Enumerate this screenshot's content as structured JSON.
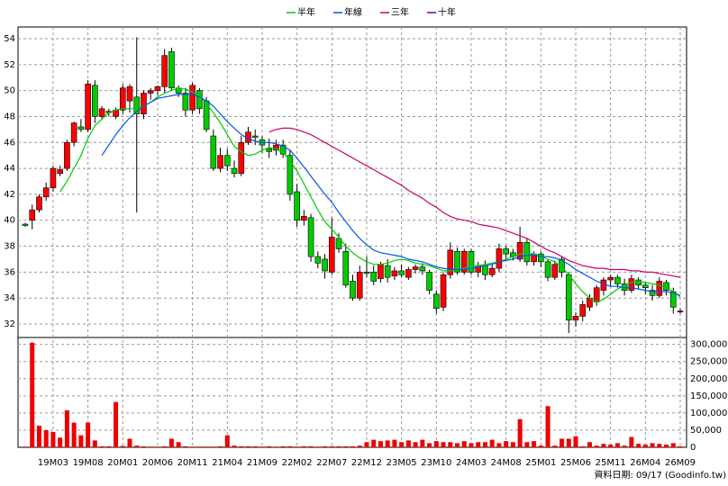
{
  "chart_data": {
    "type": "candlestick",
    "categories": [
      null,
      null,
      null,
      null,
      "19M03",
      null,
      null,
      null,
      null,
      "19M08",
      null,
      null,
      null,
      null,
      "20M01",
      null,
      null,
      null,
      null,
      "20M06",
      null,
      null,
      null,
      null,
      "20M11",
      null,
      null,
      null,
      null,
      "21M04",
      null,
      null,
      null,
      null,
      "21M09",
      null,
      null,
      null,
      null,
      "22M02",
      null,
      null,
      null,
      null,
      "22M07",
      null,
      null,
      null,
      null,
      "22M12",
      null,
      null,
      null,
      null,
      "23M05",
      null,
      null,
      null,
      null,
      "23M10",
      null,
      null,
      null,
      null,
      "24M03",
      null,
      null,
      null,
      null,
      "24M08",
      null,
      null,
      null,
      null,
      "25M01",
      null,
      null,
      null,
      null,
      "25M06",
      null,
      null,
      null,
      null,
      "25M11",
      null,
      null,
      null,
      null,
      "26M04",
      null,
      null,
      null,
      null,
      "26M09"
    ],
    "open": [
      39.7,
      40,
      40.8,
      41.8,
      42.5,
      43.6,
      44,
      46,
      47.2,
      47,
      50.4,
      48,
      48.3,
      48,
      48.5,
      49.2,
      49.5,
      48.2,
      49.8,
      50,
      50.3,
      53,
      50.2,
      49.8,
      48.5,
      50,
      49.2,
      46.5,
      44,
      45,
      44,
      43.6,
      46,
      46.5,
      46.2,
      45.5,
      45.4,
      45.8,
      45,
      42.2,
      40,
      40.2,
      37.2,
      37,
      36,
      38.6,
      37.6,
      35.3,
      34,
      36,
      36,
      35.5,
      36.5,
      35.7,
      36.1,
      35.6,
      36.2,
      36.4,
      36,
      34.3,
      33.3,
      35.8,
      37.6,
      36,
      37.6,
      36,
      36.5,
      35.8,
      36.3,
      37.8,
      37.5,
      37,
      38.3,
      36.8,
      37.4,
      36.8,
      35.6,
      37,
      35.8,
      32.3,
      32.6,
      33.3,
      33.7,
      34.6,
      35.4,
      35.6,
      35.1,
      34.6,
      35.4,
      35,
      34.6,
      34.2,
      35.2,
      34.5,
      33
    ],
    "high": [
      39.8,
      41.2,
      42,
      42.9,
      44.2,
      44.2,
      46.2,
      47.6,
      47.8,
      50.8,
      50.8,
      48.8,
      48.6,
      48.7,
      50.5,
      50.5,
      54.1,
      50,
      50.2,
      50.4,
      53.2,
      53.3,
      50.4,
      50.2,
      50.6,
      50.2,
      49.5,
      47,
      45.6,
      45.5,
      44.6,
      46.5,
      47.2,
      47,
      46.5,
      46.3,
      46.2,
      46.2,
      45.4,
      42.8,
      40.8,
      40.5,
      37.6,
      37.4,
      40.2,
      39,
      38.2,
      35.8,
      36.5,
      37.2,
      36.5,
      36.8,
      37,
      36.4,
      36.6,
      36.4,
      36.6,
      36.7,
      36.2,
      34.6,
      36,
      38.3,
      37.9,
      37.8,
      37.8,
      36.8,
      36.9,
      36.6,
      38.2,
      38,
      37.8,
      39.5,
      38.6,
      37.6,
      37.6,
      37,
      36.9,
      37.2,
      36,
      32.9,
      33.8,
      34.3,
      35,
      35.6,
      35.8,
      35.8,
      35.5,
      35.8,
      35.6,
      35.2,
      35,
      35.6,
      35.4,
      34.8,
      33.2
    ],
    "low": [
      39.5,
      39.3,
      40.6,
      41.5,
      42.2,
      43.4,
      43.8,
      45.7,
      46.8,
      46.8,
      47.5,
      47.8,
      48,
      47.8,
      48.2,
      48.3,
      40.6,
      47.8,
      49.3,
      49.6,
      49.8,
      50,
      49.5,
      48,
      48.2,
      48.2,
      46.8,
      43.8,
      43.7,
      43.8,
      43.3,
      43.4,
      45.8,
      45.8,
      45.2,
      44.8,
      45,
      44.8,
      41.5,
      39.5,
      39.6,
      36.8,
      36.3,
      35.5,
      35.8,
      37.5,
      34.8,
      33.8,
      33.8,
      35.6,
      35,
      35.2,
      35.2,
      35.4,
      35.6,
      35.4,
      35.9,
      35.8,
      34.3,
      32.8,
      33,
      35.5,
      35.8,
      35.8,
      35.8,
      35.6,
      35.4,
      35.6,
      36,
      37,
      36.9,
      36.8,
      36.5,
      36.5,
      36.4,
      35.3,
      35.4,
      35.6,
      31.3,
      31.8,
      32.2,
      33,
      33.4,
      34.2,
      34.9,
      34.8,
      34.2,
      34.4,
      34.7,
      34.3,
      33.8,
      34,
      34.2,
      32.8,
      32.8
    ],
    "close": [
      39.6,
      40.8,
      41.8,
      42.5,
      44,
      43.9,
      46,
      47.5,
      47,
      50.5,
      48,
      48.6,
      48.4,
      48.5,
      50.2,
      50.3,
      48.2,
      49.8,
      50,
      50.3,
      52.7,
      50.2,
      49.8,
      48.5,
      50.4,
      48.6,
      47,
      44,
      45,
      44.2,
      43.6,
      46,
      46.8,
      46.4,
      45.8,
      45.3,
      45.8,
      45.1,
      42,
      40,
      40.3,
      37.2,
      36.7,
      36.1,
      38.7,
      37.8,
      35,
      34,
      36,
      35.9,
      35.3,
      36.6,
      35.6,
      36.1,
      35.8,
      36.2,
      36.4,
      36.1,
      34.6,
      33.2,
      35.8,
      37.7,
      36,
      37.6,
      36,
      36.5,
      35.8,
      36.3,
      37.8,
      37.4,
      37.2,
      38.3,
      36.8,
      37.4,
      36.8,
      35.6,
      36.6,
      36,
      32.3,
      32.6,
      33.5,
      34,
      34.8,
      35.4,
      35.6,
      35.1,
      34.6,
      35.5,
      35,
      34.8,
      34.2,
      35.3,
      34.6,
      33.3,
      33
    ],
    "up_color": "#ff0000",
    "down_color": "#00cc00",
    "series": [
      {
        "name": "半年",
        "color": "#00cc00",
        "values": [
          null,
          null,
          null,
          null,
          null,
          42.2,
          43,
          44,
          45,
          46.3,
          47.3,
          47.8,
          48.3,
          48.5,
          48.6,
          48.6,
          48.6,
          48.8,
          49.1,
          49.5,
          49.8,
          50,
          50.2,
          50.1,
          49.9,
          49.6,
          49,
          48.3,
          47.5,
          46.6,
          45.7,
          45.3,
          45,
          45.1,
          45.4,
          45.6,
          45.5,
          45.2,
          44.6,
          43.8,
          42.8,
          41.8,
          40.8,
          39.9,
          39.3,
          38.7,
          38,
          37.5,
          37.1,
          36.8,
          36.6,
          36.6,
          36.7,
          36.9,
          37,
          36.9,
          36.7,
          36.6,
          36.5,
          36.3,
          36.1,
          36.1,
          36.2,
          36.3,
          36.4,
          36.5,
          36.6,
          36.7,
          36.8,
          37,
          37.2,
          37.4,
          37.5,
          37.4,
          37.2,
          37,
          36.8,
          36.4,
          35.8,
          35.1,
          34.5,
          34,
          33.7,
          33.9,
          34.3,
          34.7,
          35,
          35.2,
          35.3,
          35.2,
          35.1,
          35,
          34.8,
          34.5,
          34.1
        ]
      },
      {
        "name": "年線",
        "color": "#0055ee",
        "values": [
          null,
          null,
          null,
          null,
          null,
          null,
          null,
          null,
          null,
          null,
          null,
          45,
          45.8,
          46.6,
          47.3,
          47.9,
          48.4,
          48.8,
          49.1,
          49.4,
          49.5,
          49.6,
          49.7,
          49.7,
          49.7,
          49.5,
          49.2,
          48.8,
          48.2,
          47.6,
          47.1,
          46.6,
          46.3,
          46.1,
          46,
          46,
          45.9,
          45.7,
          45.4,
          44.8,
          44.1,
          43.4,
          42.7,
          42,
          41.4,
          40.6,
          39.9,
          39.2,
          38.6,
          38.1,
          37.7,
          37.5,
          37.4,
          37.3,
          37.2,
          37,
          36.9,
          36.8,
          36.6,
          36.4,
          36.3,
          36.2,
          36.2,
          36.2,
          36.3,
          36.4,
          36.5,
          36.6,
          36.8,
          36.9,
          37,
          37.2,
          37.3,
          37.3,
          37.2,
          37.2,
          37.1,
          36.9,
          36.6,
          36.2,
          35.9,
          35.6,
          35.3,
          35.1,
          34.9,
          34.9,
          34.8,
          34.8,
          34.7,
          34.6,
          34.5,
          34.5,
          34.5,
          34.4,
          34.2
        ]
      },
      {
        "name": "三年",
        "color": "#cc0066",
        "values": [
          null,
          null,
          null,
          null,
          null,
          null,
          null,
          null,
          null,
          null,
          null,
          null,
          null,
          null,
          null,
          null,
          null,
          null,
          null,
          null,
          null,
          null,
          null,
          null,
          null,
          null,
          null,
          null,
          null,
          null,
          null,
          null,
          null,
          null,
          null,
          46.8,
          47,
          47.1,
          47.1,
          47,
          46.8,
          46.6,
          46.3,
          46,
          45.7,
          45.4,
          45.1,
          44.8,
          44.5,
          44.2,
          43.9,
          43.6,
          43.3,
          43,
          42.7,
          42.3,
          42,
          41.7,
          41.3,
          41,
          40.6,
          40.3,
          40.1,
          40,
          39.9,
          39.7,
          39.6,
          39.5,
          39.4,
          39.2,
          39,
          38.8,
          38.6,
          38.3,
          38,
          37.7,
          37.5,
          37.2,
          36.9,
          36.7,
          36.5,
          36.4,
          36.3,
          36.3,
          36.2,
          36.2,
          36.2,
          36.1,
          36.1,
          36,
          36,
          35.9,
          35.8,
          35.7,
          35.6
        ]
      },
      {
        "name": "十年",
        "color": "#660099",
        "values": [
          null,
          null,
          null,
          null,
          null,
          null,
          null,
          null,
          null,
          null,
          null,
          null,
          null,
          null,
          null,
          null,
          null,
          null,
          null,
          null,
          null,
          null,
          null,
          null,
          null,
          null,
          null,
          null,
          null,
          null,
          null,
          null,
          null,
          null,
          null,
          null,
          null,
          null,
          null,
          null,
          null,
          null,
          null,
          null,
          null,
          null,
          null,
          null,
          null,
          null,
          null,
          null,
          null,
          null,
          null,
          null,
          null,
          null,
          null,
          null,
          null,
          null,
          null,
          null,
          null,
          null,
          null,
          null,
          null,
          null,
          null,
          null,
          null,
          null,
          null,
          null,
          null,
          null,
          null,
          null,
          null,
          null,
          null,
          null,
          null,
          null,
          null,
          null,
          null,
          null,
          null,
          null,
          null,
          null,
          null
        ]
      }
    ],
    "ylim": [
      31.1,
      54.9
    ],
    "yticks": [
      32,
      34,
      36,
      38,
      40,
      42,
      44,
      46,
      48,
      50,
      52,
      54
    ],
    "volume": {
      "color": "#ee0000",
      "values": [
        2000,
        305000,
        63000,
        50000,
        45000,
        28000,
        108000,
        72000,
        35000,
        72000,
        20000,
        3000,
        3000,
        132000,
        4000,
        25000,
        5000,
        3000,
        2000,
        2000,
        3000,
        25000,
        15000,
        3000,
        2000,
        2000,
        2000,
        2000,
        3000,
        35000,
        5000,
        3000,
        3000,
        3000,
        2000,
        3000,
        2000,
        3000,
        3000,
        2000,
        3000,
        3000,
        2000,
        3000,
        3000,
        3000,
        3000,
        3000,
        5000,
        15000,
        22000,
        18000,
        20000,
        22000,
        15000,
        20000,
        15000,
        22000,
        12000,
        18000,
        15000,
        15000,
        12000,
        18000,
        12000,
        15000,
        15000,
        22000,
        12000,
        18000,
        15000,
        82000,
        15000,
        18000,
        5000,
        120000,
        5000,
        25000,
        25000,
        32000,
        3000,
        15000,
        5000,
        10000,
        8000,
        12000,
        5000,
        30000,
        10000,
        8000,
        12000,
        10000,
        8000,
        12000,
        3000
      ],
      "ylim": [
        0,
        320000
      ],
      "yticks": [
        0,
        {
          "value": 50000,
          "label": "50,000"
        },
        {
          "value": 100000,
          "label": "100,000"
        },
        {
          "value": 150000,
          "label": "150,000"
        },
        {
          "value": 200000,
          "label": "200,000"
        },
        {
          "value": 250000,
          "label": "250,000"
        },
        {
          "value": 300000,
          "label": "300,000"
        }
      ]
    },
    "grid": true,
    "note": "資料日期: 09/17  (Goodinfo.tw)"
  }
}
